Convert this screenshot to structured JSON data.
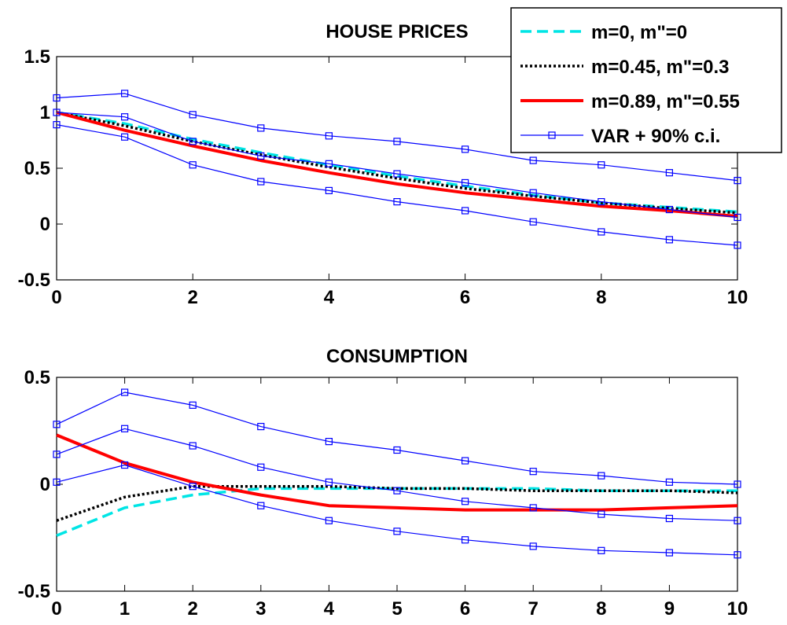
{
  "chart_data": [
    {
      "type": "line",
      "title": "HOUSE PRICES",
      "xlabel": "",
      "ylabel": "",
      "xlim": [
        0,
        10
      ],
      "ylim": [
        -0.5,
        1.5
      ],
      "xticks": [
        0,
        2,
        4,
        6,
        8,
        10
      ],
      "yticks": [
        -0.5,
        0,
        0.5,
        1,
        1.5
      ],
      "xtick_labels": [
        "0",
        "2",
        "4",
        "6",
        "8",
        "10"
      ],
      "ytick_labels": [
        "-0.5",
        "0",
        "0.5",
        "1",
        "1.5"
      ],
      "grid": false,
      "legend": "top-right",
      "series": [
        {
          "name": "m=0, m\"=0",
          "color": "#00e5e5",
          "style": "dashed",
          "x": [
            0,
            1,
            2,
            3,
            4,
            5,
            6,
            7,
            8,
            9,
            10
          ],
          "y": [
            1.0,
            0.9,
            0.76,
            0.64,
            0.53,
            0.43,
            0.34,
            0.26,
            0.19,
            0.15,
            0.11
          ]
        },
        {
          "name": "m=0.45, m\"=0.3",
          "color": "#000000",
          "style": "dotted",
          "x": [
            0,
            1,
            2,
            3,
            4,
            5,
            6,
            7,
            8,
            9,
            10
          ],
          "y": [
            1.0,
            0.88,
            0.74,
            0.62,
            0.51,
            0.41,
            0.32,
            0.25,
            0.19,
            0.14,
            0.1
          ]
        },
        {
          "name": "m=0.89, m\"=0.55",
          "color": "#ff0000",
          "style": "solid-thick",
          "x": [
            0,
            1,
            2,
            3,
            4,
            5,
            6,
            7,
            8,
            9,
            10
          ],
          "y": [
            1.0,
            0.84,
            0.7,
            0.57,
            0.46,
            0.36,
            0.28,
            0.22,
            0.16,
            0.12,
            0.07
          ]
        },
        {
          "name": "VAR + 90% c.i.",
          "color": "#0000ff",
          "style": "solid-square-markers",
          "x": [
            0,
            1,
            2,
            3,
            4,
            5,
            6,
            7,
            8,
            9,
            10
          ],
          "y": [
            1.0,
            0.96,
            0.74,
            0.61,
            0.54,
            0.45,
            0.37,
            0.28,
            0.2,
            0.13,
            0.06
          ]
        },
        {
          "name": "",
          "color": "#0000ff",
          "style": "solid-square-markers",
          "x": [
            0,
            1,
            2,
            3,
            4,
            5,
            6,
            7,
            8,
            9,
            10
          ],
          "y": [
            1.13,
            1.17,
            0.98,
            0.86,
            0.79,
            0.74,
            0.67,
            0.57,
            0.53,
            0.46,
            0.39
          ]
        },
        {
          "name": "",
          "color": "#0000ff",
          "style": "solid-square-markers",
          "x": [
            0,
            1,
            2,
            3,
            4,
            5,
            6,
            7,
            8,
            9,
            10
          ],
          "y": [
            0.89,
            0.78,
            0.53,
            0.38,
            0.3,
            0.2,
            0.12,
            0.02,
            -0.07,
            -0.14,
            -0.19
          ]
        }
      ]
    },
    {
      "type": "line",
      "title": "CONSUMPTION",
      "xlabel": "",
      "ylabel": "",
      "xlim": [
        0,
        10
      ],
      "ylim": [
        -0.5,
        0.5
      ],
      "xticks": [
        0,
        1,
        2,
        3,
        4,
        5,
        6,
        7,
        8,
        9,
        10
      ],
      "yticks": [
        -0.5,
        0,
        0.5
      ],
      "xtick_labels": [
        "0",
        "1",
        "2",
        "3",
        "4",
        "5",
        "6",
        "7",
        "8",
        "9",
        "10"
      ],
      "ytick_labels": [
        "-0.5",
        "0",
        "0.5"
      ],
      "grid": false,
      "legend": "none",
      "series": [
        {
          "name": "m=0, m\"=0",
          "color": "#00e5e5",
          "style": "dashed",
          "x": [
            0,
            1,
            2,
            3,
            4,
            5,
            6,
            7,
            8,
            9,
            10
          ],
          "y": [
            -0.24,
            -0.11,
            -0.05,
            -0.02,
            -0.02,
            -0.02,
            -0.02,
            -0.02,
            -0.03,
            -0.03,
            -0.03
          ]
        },
        {
          "name": "m=0.45, m\"=0.3",
          "color": "#000000",
          "style": "dotted",
          "x": [
            0,
            1,
            2,
            3,
            4,
            5,
            6,
            7,
            8,
            9,
            10
          ],
          "y": [
            -0.17,
            -0.06,
            -0.01,
            -0.01,
            -0.01,
            -0.02,
            -0.02,
            -0.03,
            -0.03,
            -0.03,
            -0.04
          ]
        },
        {
          "name": "m=0.89, m\"=0.55",
          "color": "#ff0000",
          "style": "solid-thick",
          "x": [
            0,
            1,
            2,
            3,
            4,
            5,
            6,
            7,
            8,
            9,
            10
          ],
          "y": [
            0.23,
            0.1,
            0.01,
            -0.05,
            -0.1,
            -0.11,
            -0.12,
            -0.12,
            -0.12,
            -0.11,
            -0.1
          ]
        },
        {
          "name": "VAR + 90% c.i.",
          "color": "#0000ff",
          "style": "solid-square-markers",
          "x": [
            0,
            1,
            2,
            3,
            4,
            5,
            6,
            7,
            8,
            9,
            10
          ],
          "y": [
            0.14,
            0.26,
            0.18,
            0.08,
            0.01,
            -0.03,
            -0.08,
            -0.11,
            -0.14,
            -0.16,
            -0.17
          ]
        },
        {
          "name": "",
          "color": "#0000ff",
          "style": "solid-square-markers",
          "x": [
            0,
            1,
            2,
            3,
            4,
            5,
            6,
            7,
            8,
            9,
            10
          ],
          "y": [
            0.28,
            0.43,
            0.37,
            0.27,
            0.2,
            0.16,
            0.11,
            0.06,
            0.04,
            0.01,
            0.0
          ]
        },
        {
          "name": "",
          "color": "#0000ff",
          "style": "solid-square-markers",
          "x": [
            0,
            1,
            2,
            3,
            4,
            5,
            6,
            7,
            8,
            9,
            10
          ],
          "y": [
            0.01,
            0.09,
            -0.01,
            -0.1,
            -0.17,
            -0.22,
            -0.26,
            -0.29,
            -0.31,
            -0.32,
            -0.33
          ]
        }
      ]
    }
  ]
}
